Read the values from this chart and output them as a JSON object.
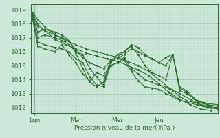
{
  "xlabel": "Pression niveau de la mer( hPa )",
  "ylim": [
    1011.6,
    1019.4
  ],
  "yticks": [
    1012,
    1013,
    1014,
    1015,
    1016,
    1017,
    1018,
    1019
  ],
  "xlim": [
    0,
    108
  ],
  "xtick_positions": [
    2,
    26,
    50,
    74
  ],
  "xtick_labels": [
    "Lun",
    "Mar",
    "Mer",
    "Jeu"
  ],
  "bg_color": "#cce8d8",
  "grid_minor_color": "#b8d8c8",
  "grid_major_color": "#99c4b0",
  "line_color": "#2d6e2d",
  "lines": [
    [
      0,
      1019.0,
      4,
      1018.3,
      8,
      1017.8,
      14,
      1017.2,
      20,
      1016.8,
      26,
      1016.5,
      32,
      1016.2,
      38,
      1016.0,
      44,
      1015.8,
      50,
      1015.6,
      56,
      1015.3,
      62,
      1015.0,
      68,
      1014.6,
      74,
      1014.0,
      80,
      1013.4,
      86,
      1013.0,
      92,
      1012.6,
      98,
      1012.2,
      104,
      1012.0
    ],
    [
      0,
      1019.0,
      4,
      1018.0,
      8,
      1017.5,
      14,
      1016.9,
      20,
      1016.5,
      26,
      1016.2,
      32,
      1015.9,
      38,
      1015.7,
      44,
      1015.5,
      50,
      1015.3,
      56,
      1015.0,
      62,
      1014.7,
      68,
      1014.3,
      74,
      1013.7,
      80,
      1013.1,
      86,
      1012.6,
      92,
      1012.2,
      98,
      1011.9,
      104,
      1011.8
    ],
    [
      0,
      1019.0,
      4,
      1017.8,
      8,
      1017.5,
      14,
      1017.2,
      18,
      1017.0,
      22,
      1016.8,
      26,
      1016.1,
      30,
      1015.6,
      34,
      1015.2,
      38,
      1015.0,
      42,
      1014.8,
      46,
      1015.3,
      50,
      1015.5,
      54,
      1015.8,
      58,
      1016.2,
      62,
      1016.0,
      66,
      1015.7,
      70,
      1015.5,
      74,
      1015.2,
      78,
      1015.6,
      82,
      1015.8,
      86,
      1013.2,
      90,
      1013.0,
      96,
      1012.5,
      102,
      1012.3,
      108,
      1012.2
    ],
    [
      0,
      1019.0,
      4,
      1017.4,
      8,
      1017.6,
      14,
      1017.4,
      18,
      1017.2,
      22,
      1016.8,
      26,
      1015.9,
      30,
      1014.8,
      34,
      1013.8,
      38,
      1013.5,
      42,
      1013.8,
      46,
      1015.4,
      50,
      1015.6,
      54,
      1016.0,
      58,
      1016.4,
      62,
      1015.8,
      66,
      1015.0,
      70,
      1014.5,
      74,
      1014.3,
      78,
      1014.0,
      82,
      1015.8,
      86,
      1013.4,
      90,
      1013.1,
      96,
      1012.4,
      102,
      1012.2,
      108,
      1012.1
    ],
    [
      0,
      1019.0,
      4,
      1017.0,
      8,
      1017.2,
      14,
      1017.0,
      18,
      1016.8,
      22,
      1016.5,
      26,
      1016.0,
      30,
      1015.8,
      34,
      1014.8,
      38,
      1014.2,
      42,
      1013.6,
      46,
      1015.2,
      50,
      1015.8,
      54,
      1016.0,
      58,
      1016.5,
      62,
      1016.3,
      66,
      1015.8,
      70,
      1015.5,
      74,
      1015.2,
      78,
      1015.0,
      82,
      1015.8,
      86,
      1013.5,
      90,
      1013.2,
      96,
      1012.5,
      102,
      1012.2,
      108,
      1012.1
    ],
    [
      0,
      1019.0,
      4,
      1016.7,
      8,
      1016.5,
      14,
      1016.3,
      18,
      1016.2,
      22,
      1016.0,
      26,
      1015.5,
      30,
      1015.2,
      34,
      1014.2,
      38,
      1013.6,
      42,
      1013.5,
      46,
      1015.0,
      50,
      1015.2,
      54,
      1015.6,
      58,
      1014.8,
      62,
      1014.4,
      66,
      1014.0,
      70,
      1013.8,
      74,
      1013.6,
      78,
      1013.5,
      82,
      1013.2,
      86,
      1012.8,
      90,
      1012.5,
      96,
      1012.3,
      102,
      1012.1,
      108,
      1012.0
    ],
    [
      0,
      1019.0,
      4,
      1016.4,
      8,
      1016.2,
      14,
      1016.0,
      18,
      1016.5,
      22,
      1015.8,
      26,
      1015.2,
      30,
      1014.4,
      34,
      1013.9,
      38,
      1014.5,
      42,
      1014.3,
      46,
      1015.0,
      50,
      1015.2,
      54,
      1015.4,
      58,
      1014.6,
      62,
      1013.9,
      66,
      1013.5,
      70,
      1013.4,
      74,
      1013.3,
      78,
      1013.0,
      82,
      1012.8,
      86,
      1012.5,
      90,
      1012.4,
      96,
      1012.2,
      102,
      1012.0,
      108,
      1011.9
    ]
  ],
  "marker": "D",
  "marker_size": 1.5,
  "line_width": 0.8
}
